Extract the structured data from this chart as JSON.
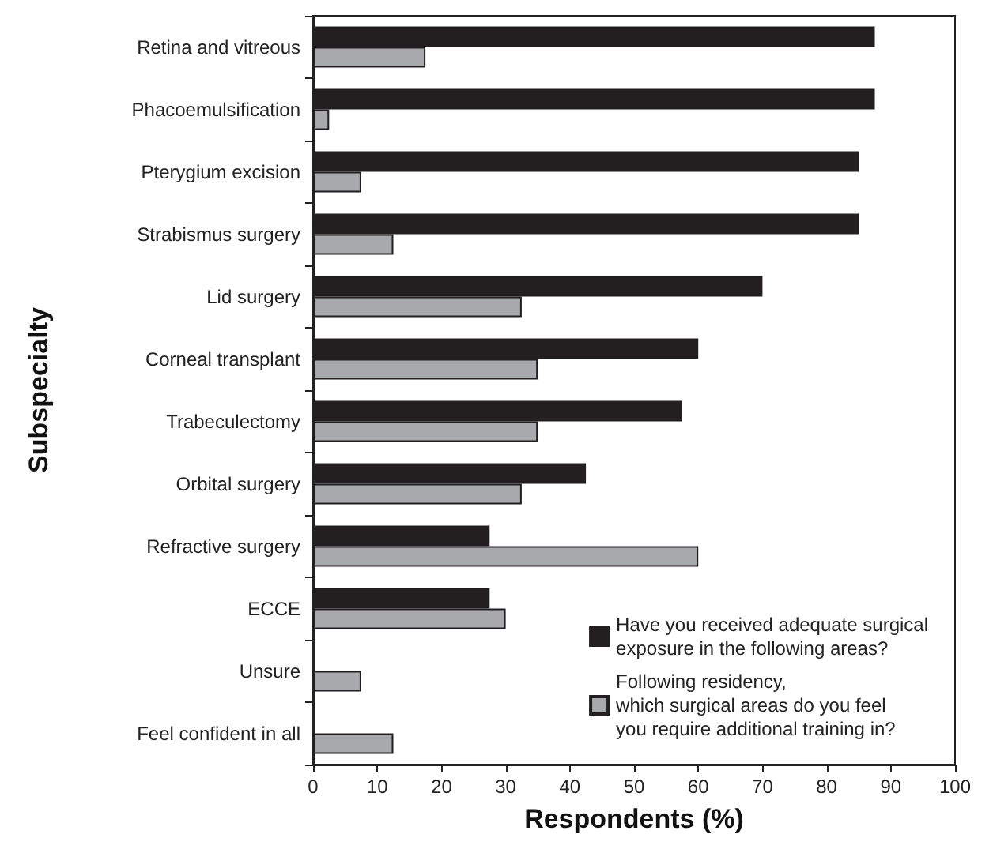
{
  "chart_data": {
    "type": "bar",
    "orientation": "horizontal",
    "xlabel": "Respondents (%)",
    "ylabel": "Subspecialty",
    "categories": [
      "Retina and vitreous",
      "Phacoemulsification",
      "Pterygium excision",
      "Strabismus surgery",
      "Lid surgery",
      "Corneal transplant",
      "Trabeculectomy",
      "Orbital surgery",
      "Refractive surgery",
      "ECCE",
      "Unsure",
      "Feel confident in all"
    ],
    "series": [
      {
        "name": "Have you received adequate surgical\nexposure in the following areas?",
        "color": "#231f20",
        "values": [
          87.5,
          87.5,
          85,
          85,
          70,
          60,
          57.5,
          42.5,
          27.5,
          27.5,
          null,
          null
        ]
      },
      {
        "name": "Following residency,\nwhich surgical areas do you feel\nyou require additional training in?",
        "color": "#a7a9ac",
        "values": [
          17.5,
          2.5,
          7.5,
          12.5,
          32.5,
          35,
          35,
          32.5,
          60,
          30,
          7.5,
          12.5
        ]
      }
    ],
    "xlim": [
      0,
      100
    ],
    "xticks": [
      0,
      10,
      20,
      30,
      40,
      50,
      60,
      70,
      80,
      90,
      100
    ],
    "grid": false,
    "legend": "bottom right"
  }
}
